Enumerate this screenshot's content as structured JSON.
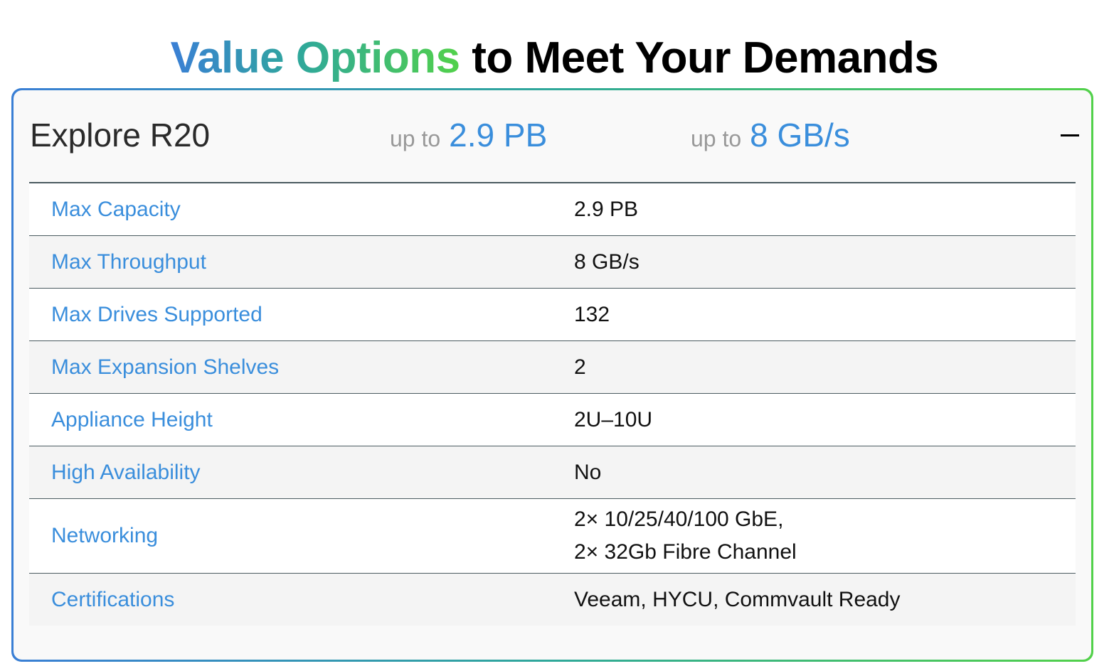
{
  "heading": {
    "part1": "Value Options",
    "part2": " to Meet Your Demands"
  },
  "card": {
    "name": "Explore R20",
    "capacity": {
      "prefix": "up to",
      "value": "2.9 PB"
    },
    "throughput": {
      "prefix": "up to",
      "value": "8 GB/s"
    },
    "toggle_icon": "minus-icon",
    "specs": [
      {
        "label": "Max Capacity",
        "value": "2.9 PB"
      },
      {
        "label": "Max Throughput",
        "value": "8 GB/s"
      },
      {
        "label": "Max Drives Supported",
        "value": "132"
      },
      {
        "label": "Max Expansion Shelves",
        "value": "2"
      },
      {
        "label": "Appliance Height",
        "value": "2U–10U"
      },
      {
        "label": "High Availability",
        "value": "No"
      },
      {
        "label": "Networking",
        "value": "2× 10/25/40/100 GbE,",
        "value2": "2× 32Gb Fibre Channel"
      },
      {
        "label": "Certifications",
        "value": "Veeam, HYCU, Commvault Ready"
      }
    ]
  },
  "colors": {
    "accent": "#3a8edc",
    "gradient_start": "#3a7fd5",
    "gradient_end": "#52d14a"
  }
}
